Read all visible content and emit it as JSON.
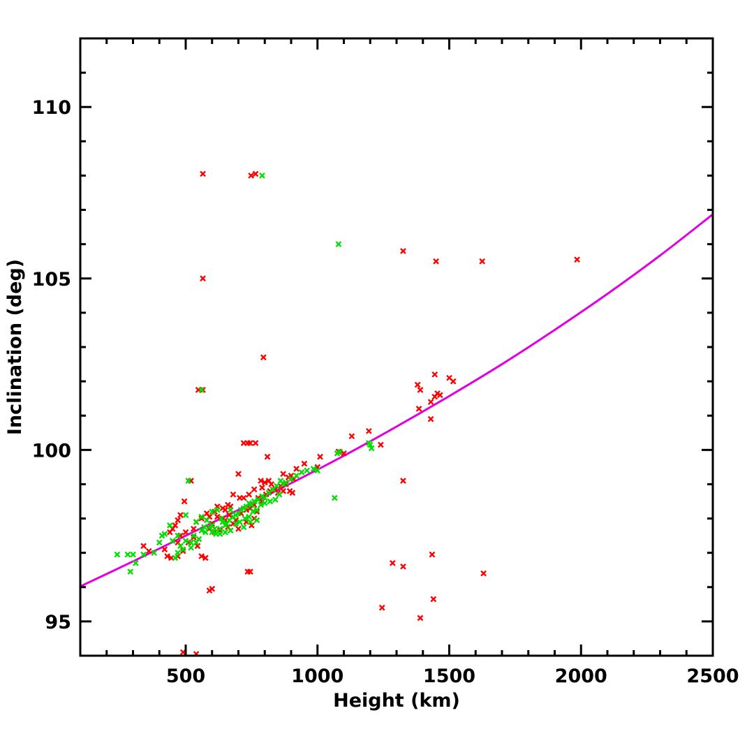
{
  "chart_data": {
    "type": "scatter",
    "title": "",
    "xlabel": "Height (km)",
    "ylabel": "Inclination (deg)",
    "xlim": [
      100,
      2500
    ],
    "ylim": [
      94,
      112
    ],
    "xticks": [
      500,
      1000,
      1500,
      2000,
      2500
    ],
    "yticks": [
      95,
      100,
      105,
      110
    ],
    "x_minor_step": 100,
    "y_minor_step": 1,
    "grid": false,
    "legend": "none",
    "colors": {
      "red": "#ff0000",
      "green": "#00e000",
      "curve": "#e000e0",
      "axes": "#000000"
    },
    "series": [
      {
        "color": "red",
        "marker": "x",
        "points": [
          [
            565,
            108.05
          ],
          [
            748,
            108.0
          ],
          [
            765,
            108.05
          ],
          [
            565,
            105.0
          ],
          [
            795,
            102.7
          ],
          [
            548,
            101.75
          ],
          [
            565,
            101.75
          ],
          [
            1325,
            105.8
          ],
          [
            1450,
            105.5
          ],
          [
            1625,
            105.5
          ],
          [
            1985,
            105.55
          ],
          [
            1380,
            101.9
          ],
          [
            1390,
            101.75
          ],
          [
            1385,
            101.2
          ],
          [
            1430,
            101.4
          ],
          [
            1445,
            101.55
          ],
          [
            1455,
            101.65
          ],
          [
            1465,
            101.6
          ],
          [
            1445,
            102.2
          ],
          [
            1430,
            100.9
          ],
          [
            1500,
            102.1
          ],
          [
            1515,
            102.0
          ],
          [
            720,
            100.2
          ],
          [
            735,
            100.2
          ],
          [
            745,
            100.2
          ],
          [
            765,
            100.2
          ],
          [
            810,
            99.8
          ],
          [
            1010,
            99.8
          ],
          [
            1080,
            99.95
          ],
          [
            1100,
            99.9
          ],
          [
            1195,
            100.55
          ],
          [
            1240,
            100.15
          ],
          [
            1130,
            100.4
          ],
          [
            950,
            99.6
          ],
          [
            1000,
            99.5
          ],
          [
            920,
            99.45
          ],
          [
            870,
            99.3
          ],
          [
            890,
            99.2
          ],
          [
            900,
            99.25
          ],
          [
            910,
            99.15
          ],
          [
            880,
            99.0
          ],
          [
            895,
            98.8
          ],
          [
            905,
            98.75
          ],
          [
            785,
            99.1
          ],
          [
            800,
            99.05
          ],
          [
            815,
            99.1
          ],
          [
            825,
            99.0
          ],
          [
            790,
            98.9
          ],
          [
            760,
            98.85
          ],
          [
            740,
            98.7
          ],
          [
            700,
            99.3
          ],
          [
            705,
            98.6
          ],
          [
            720,
            98.6
          ],
          [
            680,
            98.7
          ],
          [
            660,
            98.4
          ],
          [
            640,
            98.3
          ],
          [
            620,
            98.35
          ],
          [
            610,
            98.2
          ],
          [
            580,
            98.15
          ],
          [
            590,
            98.05
          ],
          [
            560,
            98.0
          ],
          [
            540,
            97.9
          ],
          [
            530,
            97.7
          ],
          [
            500,
            97.6
          ],
          [
            480,
            97.5
          ],
          [
            470,
            97.3
          ],
          [
            460,
            97.8
          ],
          [
            450,
            97.7
          ],
          [
            440,
            97.6
          ],
          [
            470,
            97.95
          ],
          [
            480,
            98.1
          ],
          [
            495,
            98.5
          ],
          [
            520,
            99.1
          ],
          [
            545,
            97.2
          ],
          [
            560,
            96.9
          ],
          [
            575,
            96.85
          ],
          [
            650,
            98.25
          ],
          [
            665,
            98.1
          ],
          [
            690,
            97.95
          ],
          [
            710,
            98.15
          ],
          [
            730,
            98.25
          ],
          [
            745,
            98.3
          ],
          [
            760,
            98.4
          ],
          [
            775,
            98.6
          ],
          [
            790,
            98.5
          ],
          [
            805,
            98.7
          ],
          [
            820,
            98.8
          ],
          [
            840,
            98.85
          ],
          [
            850,
            98.75
          ],
          [
            860,
            98.95
          ],
          [
            870,
            98.8
          ],
          [
            760,
            98.0
          ],
          [
            770,
            98.2
          ],
          [
            730,
            97.9
          ],
          [
            750,
            97.8
          ],
          [
            700,
            97.7
          ],
          [
            680,
            97.85
          ],
          [
            660,
            97.75
          ],
          [
            640,
            98.0
          ],
          [
            620,
            98.05
          ],
          [
            600,
            97.85
          ],
          [
            610,
            97.6
          ],
          [
            590,
            97.7
          ],
          [
            630,
            97.65
          ],
          [
            650,
            97.95
          ],
          [
            670,
            98.35
          ],
          [
            340,
            97.2
          ],
          [
            360,
            97.05
          ],
          [
            420,
            97.1
          ],
          [
            430,
            96.9
          ],
          [
            445,
            96.85
          ],
          [
            470,
            96.9
          ],
          [
            490,
            97.05
          ],
          [
            510,
            97.3
          ],
          [
            530,
            97.45
          ],
          [
            735,
            96.45
          ],
          [
            745,
            96.45
          ],
          [
            590,
            95.9
          ],
          [
            600,
            95.95
          ],
          [
            1285,
            96.7
          ],
          [
            1325,
            96.6
          ],
          [
            1435,
            96.95
          ],
          [
            1630,
            96.4
          ],
          [
            1245,
            95.4
          ],
          [
            1440,
            95.65
          ],
          [
            1390,
            95.1
          ],
          [
            1325,
            99.1
          ],
          [
            490,
            94.1
          ],
          [
            540,
            94.05
          ]
        ]
      },
      {
        "color": "green",
        "marker": "x",
        "points": [
          [
            790,
            108.0
          ],
          [
            1080,
            106.0
          ],
          [
            1065,
            98.6
          ],
          [
            1200,
            100.15
          ],
          [
            1205,
            100.05
          ],
          [
            1195,
            100.2
          ],
          [
            1075,
            99.9
          ],
          [
            1085,
            99.95
          ],
          [
            560,
            101.75
          ],
          [
            240,
            96.95
          ],
          [
            280,
            96.95
          ],
          [
            300,
            96.95
          ],
          [
            290,
            96.45
          ],
          [
            310,
            96.7
          ],
          [
            340,
            96.95
          ],
          [
            380,
            97.0
          ],
          [
            400,
            97.3
          ],
          [
            410,
            97.5
          ],
          [
            420,
            97.55
          ],
          [
            440,
            97.8
          ],
          [
            450,
            97.35
          ],
          [
            470,
            97.5
          ],
          [
            480,
            97.2
          ],
          [
            490,
            97.1
          ],
          [
            500,
            98.1
          ],
          [
            510,
            99.1
          ],
          [
            520,
            97.3
          ],
          [
            530,
            97.5
          ],
          [
            550,
            97.4
          ],
          [
            560,
            97.65
          ],
          [
            575,
            97.6
          ],
          [
            590,
            97.75
          ],
          [
            600,
            97.8
          ],
          [
            615,
            97.55
          ],
          [
            630,
            97.7
          ],
          [
            640,
            97.9
          ],
          [
            650,
            97.8
          ],
          [
            665,
            97.95
          ],
          [
            680,
            98.05
          ],
          [
            690,
            98.1
          ],
          [
            700,
            98.15
          ],
          [
            710,
            98.25
          ],
          [
            720,
            98.3
          ],
          [
            730,
            98.35
          ],
          [
            740,
            98.45
          ],
          [
            750,
            98.4
          ],
          [
            760,
            98.5
          ],
          [
            775,
            98.55
          ],
          [
            790,
            98.65
          ],
          [
            800,
            98.6
          ],
          [
            815,
            98.75
          ],
          [
            830,
            98.85
          ],
          [
            845,
            98.95
          ],
          [
            860,
            99.1
          ],
          [
            870,
            99.0
          ],
          [
            880,
            99.05
          ],
          [
            900,
            99.15
          ],
          [
            920,
            99.25
          ],
          [
            940,
            99.35
          ],
          [
            960,
            99.4
          ],
          [
            985,
            99.45
          ],
          [
            1000,
            99.4
          ],
          [
            540,
            97.9
          ],
          [
            560,
            98.05
          ],
          [
            570,
            97.75
          ],
          [
            580,
            97.95
          ],
          [
            600,
            98.2
          ],
          [
            620,
            98.25
          ],
          [
            635,
            98.0
          ],
          [
            655,
            97.85
          ],
          [
            670,
            98.25
          ],
          [
            690,
            97.85
          ],
          [
            705,
            97.9
          ],
          [
            725,
            98.0
          ],
          [
            740,
            98.05
          ],
          [
            755,
            98.2
          ],
          [
            770,
            98.25
          ],
          [
            785,
            98.4
          ],
          [
            800,
            98.45
          ],
          [
            820,
            98.5
          ],
          [
            840,
            98.55
          ],
          [
            855,
            98.7
          ],
          [
            460,
            96.85
          ],
          [
            470,
            97.0
          ],
          [
            500,
            97.35
          ],
          [
            520,
            97.15
          ],
          [
            540,
            97.3
          ],
          [
            600,
            97.6
          ],
          [
            610,
            97.7
          ],
          [
            630,
            97.55
          ],
          [
            650,
            97.6
          ],
          [
            670,
            97.65
          ],
          [
            720,
            97.75
          ],
          [
            745,
            97.9
          ],
          [
            770,
            97.95
          ]
        ]
      }
    ],
    "curve": {
      "color": "curve",
      "x": [
        100,
        300,
        500,
        700,
        900,
        1100,
        1300,
        1500,
        1700,
        1900,
        2100,
        2300,
        2500
      ],
      "y": [
        96.02,
        96.75,
        97.5,
        98.25,
        99.03,
        99.83,
        100.68,
        101.57,
        102.5,
        103.5,
        104.55,
        105.67,
        106.87
      ]
    }
  }
}
